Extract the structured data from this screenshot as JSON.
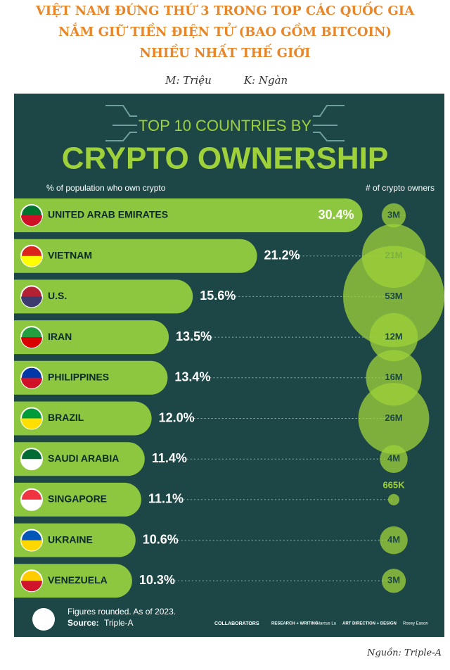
{
  "header": {
    "title_lines": [
      "VIỆT NAM ĐỨNG THỨ 3 TRONG TOP CÁC QUỐC GIA",
      "NẮM GIỮ TIỀN ĐIỆN TỬ (BAO GỒM BITCOIN)",
      "NHIỀU NHẤT THẾ GIỚI"
    ],
    "legend_m": "M: Triệu",
    "legend_k": "K: Ngàn"
  },
  "chart_data": {
    "type": "bar",
    "title_top": "TOP 10 COUNTRIES BY",
    "title": "CRYPTO OWNERSHIP",
    "subtitle_left": "% of population who own crypto",
    "subtitle_right": "# of crypto owners",
    "categories": [
      "UNITED ARAB EMIRATES",
      "VIETNAM",
      "U.S.",
      "IRAN",
      "PHILIPPINES",
      "BRAZIL",
      "SAUDI ARABIA",
      "SINGAPORE",
      "UKRAINE",
      "VENEZUELA"
    ],
    "series": [
      {
        "name": "% of population who own crypto",
        "color": "#8dc63f",
        "values": [
          30.4,
          21.2,
          15.6,
          13.5,
          13.4,
          12.0,
          11.4,
          11.1,
          10.6,
          10.3
        ],
        "value_labels": [
          "30.4%",
          "21.2%",
          "15.6%",
          "13.5%",
          "13.4%",
          "12.0%",
          "11.4%",
          "11.1%",
          "10.6%",
          "10.3%"
        ]
      },
      {
        "name": "# of crypto owners",
        "color": "#9fd13a",
        "values": [
          3000000,
          21000000,
          53000000,
          12000000,
          16000000,
          26000000,
          4000000,
          665000,
          4000000,
          3000000
        ],
        "value_labels": [
          "3M",
          "21M",
          "53M",
          "12M",
          "16M",
          "26M",
          "4M",
          "665K",
          "4M",
          "3M"
        ]
      }
    ],
    "note": "Figures rounded. As of 2023.",
    "source_label": "Source:",
    "source": "Triple-A",
    "collaborators": "COLLABORATORS",
    "research_label": "RESEARCH + WRITING",
    "research": "Marcus Lu",
    "design_label": "ART DIRECTION + DESIGN",
    "design": "Rosey Eason"
  },
  "footer": {
    "source": "Nguồn: Triple-A"
  }
}
